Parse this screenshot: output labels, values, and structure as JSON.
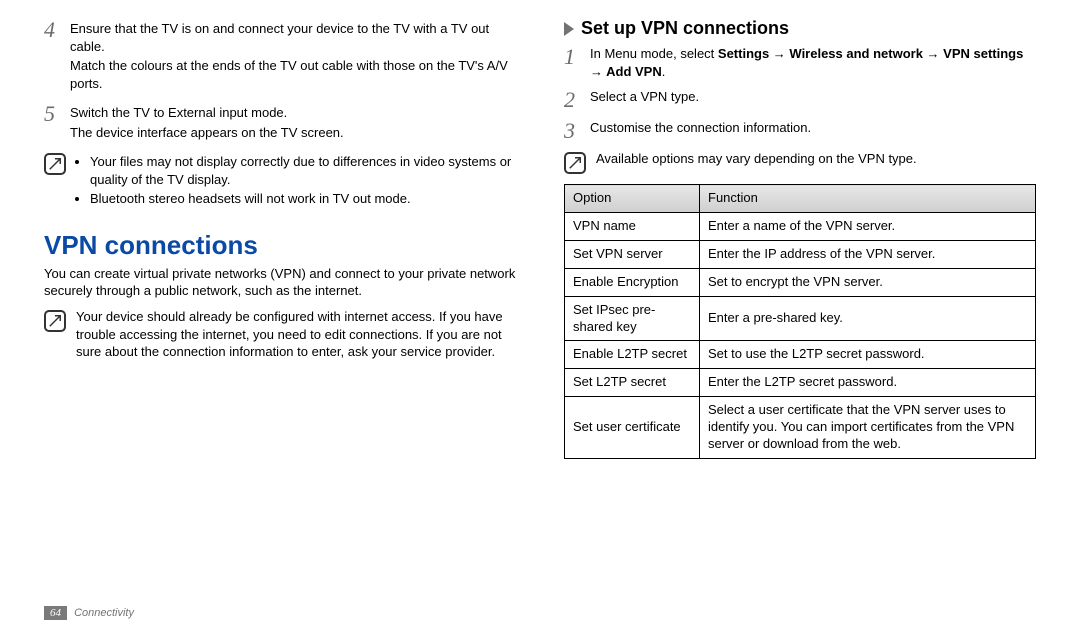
{
  "left": {
    "step4": {
      "num": "4",
      "p1": "Ensure that the TV is on and connect your device to the TV with a TV out cable.",
      "p2": "Match the colours at the ends of the TV out cable with those on the TV's A/V ports."
    },
    "step5": {
      "num": "5",
      "p1": "Switch the TV to External input mode.",
      "p2": "The device interface appears on the TV screen."
    },
    "note1": {
      "b1": "Your files may not display correctly due to differences in video systems or quality of the TV display.",
      "b2": "Bluetooth stereo headsets will not work in TV out mode."
    },
    "heading": "VPN connections",
    "intro": "You can create virtual private networks (VPN) and connect to your private network securely through a public network, such as the internet.",
    "note2": "Your device should already be configured with internet access. If you have trouble accessing the internet, you need to edit connections. If you are not sure about the connection information to enter, ask your service provider."
  },
  "right": {
    "subheading": "Set up VPN connections",
    "step1": {
      "num": "1",
      "pre": "In Menu mode, select ",
      "bold": "Settings → Wireless and network → VPN settings → Add VPN",
      "post": "."
    },
    "step2": {
      "num": "2",
      "p1": "Select a VPN type."
    },
    "step3": {
      "num": "3",
      "p1": "Customise the connection information."
    },
    "note": "Available options may vary depending on the VPN type.",
    "table": {
      "header": {
        "opt": "Option",
        "fn": "Function"
      },
      "rows": [
        {
          "opt": "VPN name",
          "fn": "Enter a name of the VPN server."
        },
        {
          "opt": "Set VPN server",
          "fn": "Enter the IP address of the VPN server."
        },
        {
          "opt": "Enable Encryption",
          "fn": "Set to encrypt the VPN server."
        },
        {
          "opt": "Set IPsec pre-shared key",
          "fn": "Enter a pre-shared key."
        },
        {
          "opt": "Enable L2TP secret",
          "fn": "Set to use the L2TP secret password."
        },
        {
          "opt": "Set L2TP secret",
          "fn": "Enter the L2TP secret password."
        },
        {
          "opt": "Set user certificate",
          "fn": "Select a user certificate that the VPN server uses to identify you. You can import certificates from the VPN server or download from the web."
        }
      ]
    }
  },
  "footer": {
    "page": "64",
    "section": "Connectivity"
  }
}
